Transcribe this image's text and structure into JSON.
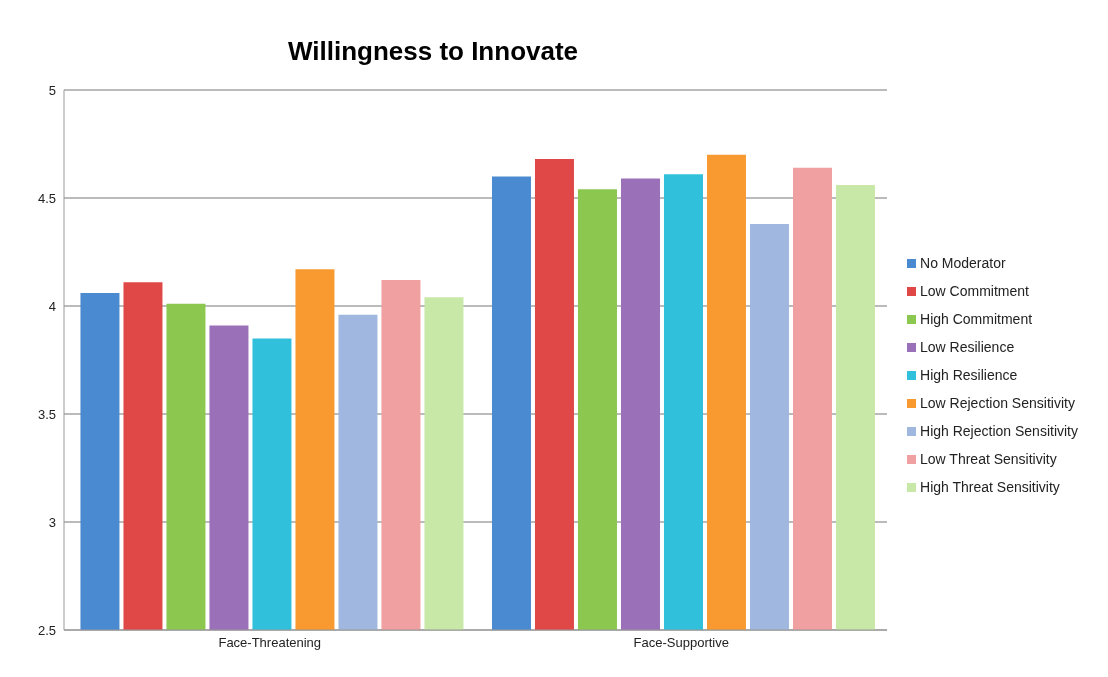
{
  "chart_data": {
    "type": "bar",
    "title": "Willingness to Innovate",
    "categories": [
      "Face-Threatening",
      "Face-Supportive"
    ],
    "series": [
      {
        "name": "No Moderator",
        "color": "#4a8ad0",
        "values": [
          4.06,
          4.6
        ]
      },
      {
        "name": "Low Commitment",
        "color": "#e04848",
        "values": [
          4.11,
          4.68
        ]
      },
      {
        "name": "High Commitment",
        "color": "#8cc850",
        "values": [
          4.01,
          4.54
        ]
      },
      {
        "name": "Low Resilience",
        "color": "#9a70b8",
        "values": [
          3.91,
          4.59
        ]
      },
      {
        "name": "High Resilience",
        "color": "#30c0dc",
        "values": [
          3.85,
          4.61
        ]
      },
      {
        "name": "Low Rejection Sensitivity",
        "color": "#f89a30",
        "values": [
          4.17,
          4.7
        ]
      },
      {
        "name": "High Rejection Sensitivity",
        "color": "#a0b8e0",
        "values": [
          3.96,
          4.38
        ]
      },
      {
        "name": "Low Threat Sensitivity",
        "color": "#f0a0a0",
        "values": [
          4.12,
          4.64
        ]
      },
      {
        "name": "High Threat Sensitivity",
        "color": "#c8e8a8",
        "values": [
          4.04,
          4.56
        ]
      }
    ],
    "ylim": [
      2.5,
      5
    ],
    "yticks": [
      2.5,
      3,
      3.5,
      4,
      4.5,
      5
    ],
    "grid": "y",
    "legend": "right"
  }
}
